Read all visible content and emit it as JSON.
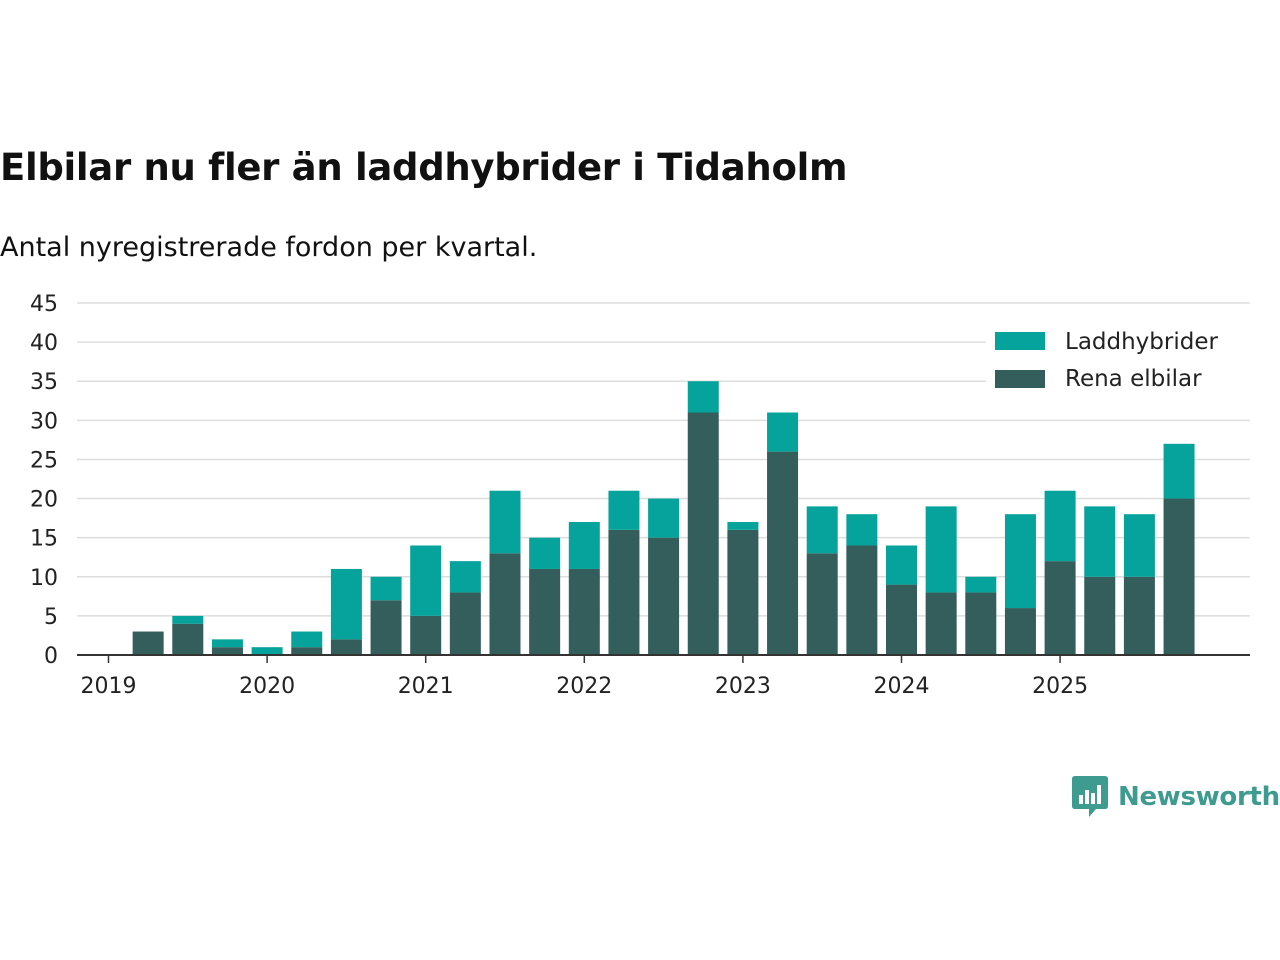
{
  "title": "Elbilar nu fler än laddhybrider i Tidaholm",
  "subtitle": "Antal nyregistrerade fordon per kvartal.",
  "brand": {
    "name": "Newsworthy",
    "color": "#3d9b8f"
  },
  "colors": {
    "phev": "#05a39b",
    "bev": "#335e5b",
    "grid": "#dddddd",
    "axis": "#333333",
    "text": "#222222"
  },
  "chart_data": {
    "type": "bar",
    "stacked": true,
    "title": "Elbilar nu fler än laddhybrider i Tidaholm",
    "subtitle": "Antal nyregistrerade fordon per kvartal.",
    "xlabel": "",
    "ylabel": "",
    "ylim": [
      0,
      45
    ],
    "yticks": [
      0,
      5,
      10,
      15,
      20,
      25,
      30,
      35,
      40,
      45
    ],
    "grid": true,
    "legend_position": "top-right",
    "year_ticks": [
      {
        "label": "2019",
        "quarter_index": 0
      },
      {
        "label": "2020",
        "quarter_index": 4
      },
      {
        "label": "2021",
        "quarter_index": 8
      },
      {
        "label": "2022",
        "quarter_index": 12
      },
      {
        "label": "2023",
        "quarter_index": 16
      },
      {
        "label": "2024",
        "quarter_index": 20
      },
      {
        "label": "2025",
        "quarter_index": 24
      }
    ],
    "categories": [
      "2019 Q1",
      "2019 Q2",
      "2019 Q3",
      "2019 Q4",
      "2020 Q1",
      "2020 Q2",
      "2020 Q3",
      "2020 Q4",
      "2021 Q1",
      "2021 Q2",
      "2021 Q3",
      "2021 Q4",
      "2022 Q1",
      "2022 Q2",
      "2022 Q3",
      "2022 Q4",
      "2023 Q1",
      "2023 Q2",
      "2023 Q3",
      "2023 Q4",
      "2024 Q1",
      "2024 Q2",
      "2024 Q3",
      "2024 Q4",
      "2025 Q1",
      "2025 Q2",
      "2025 Q3",
      "2025 Q4"
    ],
    "series": [
      {
        "name": "Rena elbilar",
        "color": "#335e5b",
        "values": [
          0,
          3,
          4,
          1,
          0,
          1,
          2,
          7,
          5,
          8,
          13,
          11,
          11,
          16,
          15,
          31,
          16,
          26,
          13,
          14,
          9,
          8,
          8,
          6,
          12,
          10,
          10,
          20
        ]
      },
      {
        "name": "Laddhybrider",
        "color": "#05a39b",
        "values": [
          0,
          0,
          1,
          1,
          1,
          2,
          9,
          3,
          9,
          4,
          8,
          4,
          6,
          5,
          5,
          4,
          1,
          5,
          6,
          4,
          5,
          11,
          2,
          12,
          9,
          9,
          8,
          7
        ]
      }
    ],
    "legend": [
      "Laddhybrider",
      "Rena elbilar"
    ]
  }
}
